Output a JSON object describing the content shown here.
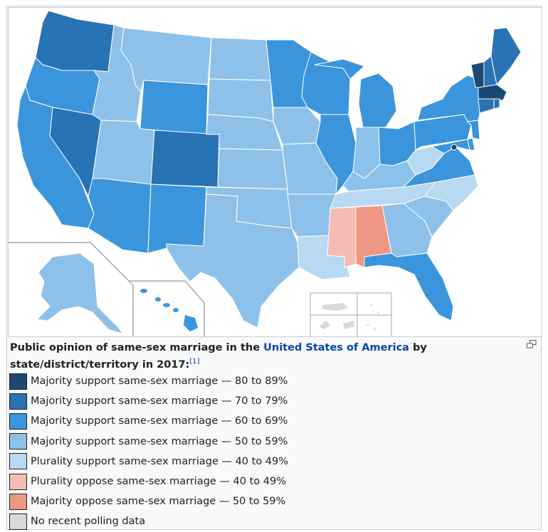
{
  "caption": {
    "prefix": "Public opinion of same-sex marriage in the ",
    "link": "United States of America",
    "suffix": " by state/district/territory in 2017",
    "colon": ":",
    "ref": "[1]"
  },
  "legend": [
    {
      "label": "Majority support same-sex marriage — 80 to 89%",
      "color": "#1a4971"
    },
    {
      "label": "Majority support same-sex marriage — 70 to 79%",
      "color": "#2873b4"
    },
    {
      "label": "Majority support same-sex marriage — 60 to 69%",
      "color": "#3a95dc"
    },
    {
      "label": "Majority support same-sex marriage — 50 to 59%",
      "color": "#8ec1e9"
    },
    {
      "label": "Plurality support same-sex marriage — 40 to 49%",
      "color": "#b8d9f2"
    },
    {
      "label": "Plurality oppose same-sex marriage — 40 to 49%",
      "color": "#f5bcb4"
    },
    {
      "label": "Majority oppose same-sex marriage — 50 to 59%",
      "color": "#ef9785"
    },
    {
      "label": "No recent polling data",
      "color": "#d9d9d9"
    }
  ],
  "colors": {
    "c80": "#1a4971",
    "c70": "#2873b4",
    "c60": "#3a95dc",
    "c50": "#8ec1e9",
    "p40": "#b8d9f2",
    "po40": "#f5bcb4",
    "mo50": "#ef9785",
    "nodata": "#d9d9d9",
    "link": "#0645ad"
  },
  "icons": {
    "expand": "expand-icon"
  }
}
